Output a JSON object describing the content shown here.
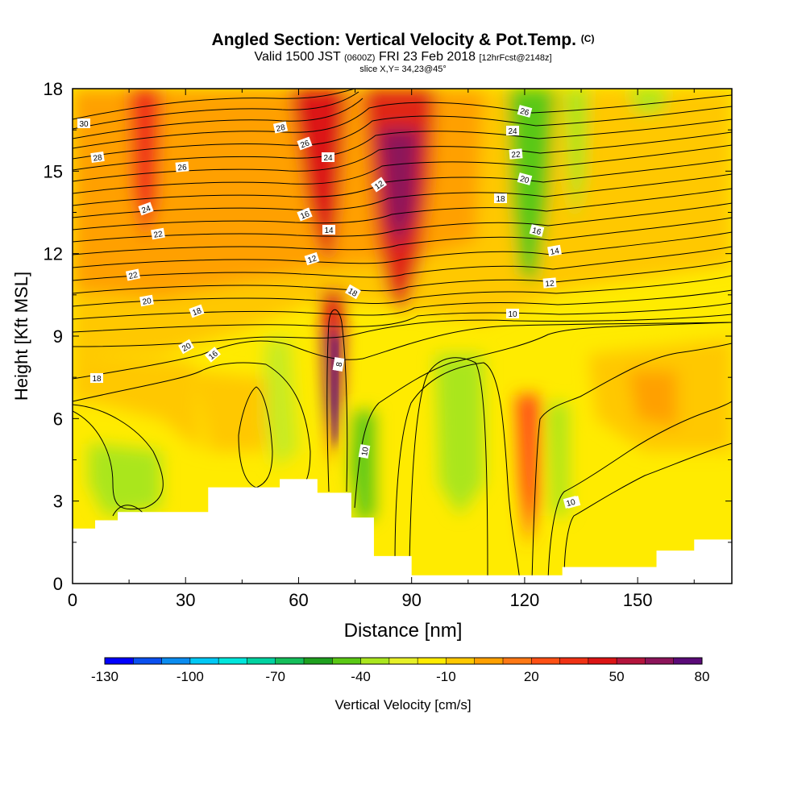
{
  "title": {
    "line1": "Angled Section: Vertical Velocity & Pot.Temp.",
    "line1_unit": "(C)",
    "line2_main": "Valid 1500 JST",
    "line2_utc": "(0600Z)",
    "line2_date": "FRI 23 Feb 2018",
    "line2_fcst": "[12hrFcst@2148z]",
    "line3": "slice X,Y= 34,23@45°"
  },
  "chart_data": {
    "type": "heatmap",
    "xlabel": "Distance [nm]",
    "ylabel": "Height [Kft MSL]",
    "xlim": [
      0,
      175
    ],
    "ylim": [
      0,
      18
    ],
    "x_ticks": [
      "0",
      "30",
      "60",
      "90",
      "120",
      "150"
    ],
    "x_tick_values": [
      0,
      30,
      60,
      90,
      120,
      150
    ],
    "y_ticks": [
      "0",
      "3",
      "6",
      "9",
      "12",
      "15",
      "18"
    ],
    "y_tick_values": [
      0,
      3,
      6,
      9,
      12,
      15,
      18
    ],
    "colorbar": {
      "label": "Vertical Velocity [cm/s]",
      "tick_labels": [
        "-130",
        "-100",
        "-70",
        "-40",
        "-10",
        "20",
        "50",
        "80"
      ],
      "colors": [
        "#0000ff",
        "#0a50f0",
        "#0a8cf0",
        "#00c8f5",
        "#00e6dc",
        "#00d2a0",
        "#14be5a",
        "#1ea01e",
        "#5ac814",
        "#aae61e",
        "#e6f028",
        "#ffeb00",
        "#ffc800",
        "#ffa000",
        "#ff7814",
        "#ff5014",
        "#f03214",
        "#dc1414",
        "#b4143c",
        "#8c145a",
        "#5a0a78"
      ]
    },
    "contour_field": "Potential temperature (C)",
    "contour_labels": [
      "30",
      "28",
      "26",
      "28",
      "26",
      "24",
      "24",
      "22",
      "22",
      "20",
      "18",
      "20",
      "16",
      "18",
      "16",
      "14",
      "12",
      "18",
      "14",
      "12",
      "10",
      "10",
      "8",
      "26",
      "24",
      "22",
      "20",
      "18",
      "16",
      "14",
      "12",
      "10",
      "8"
    ],
    "terrain_profile": {
      "x": [
        0,
        6,
        12,
        30,
        36,
        50,
        55,
        65,
        68,
        74,
        80,
        90,
        115,
        125,
        130,
        140,
        155,
        165,
        175
      ],
      "y": [
        2.0,
        2.3,
        2.6,
        2.6,
        3.5,
        3.5,
        3.8,
        3.3,
        3.3,
        2.4,
        1.0,
        0.3,
        0.3,
        0.3,
        0.6,
        0.6,
        1.2,
        1.6,
        1.6
      ]
    }
  }
}
